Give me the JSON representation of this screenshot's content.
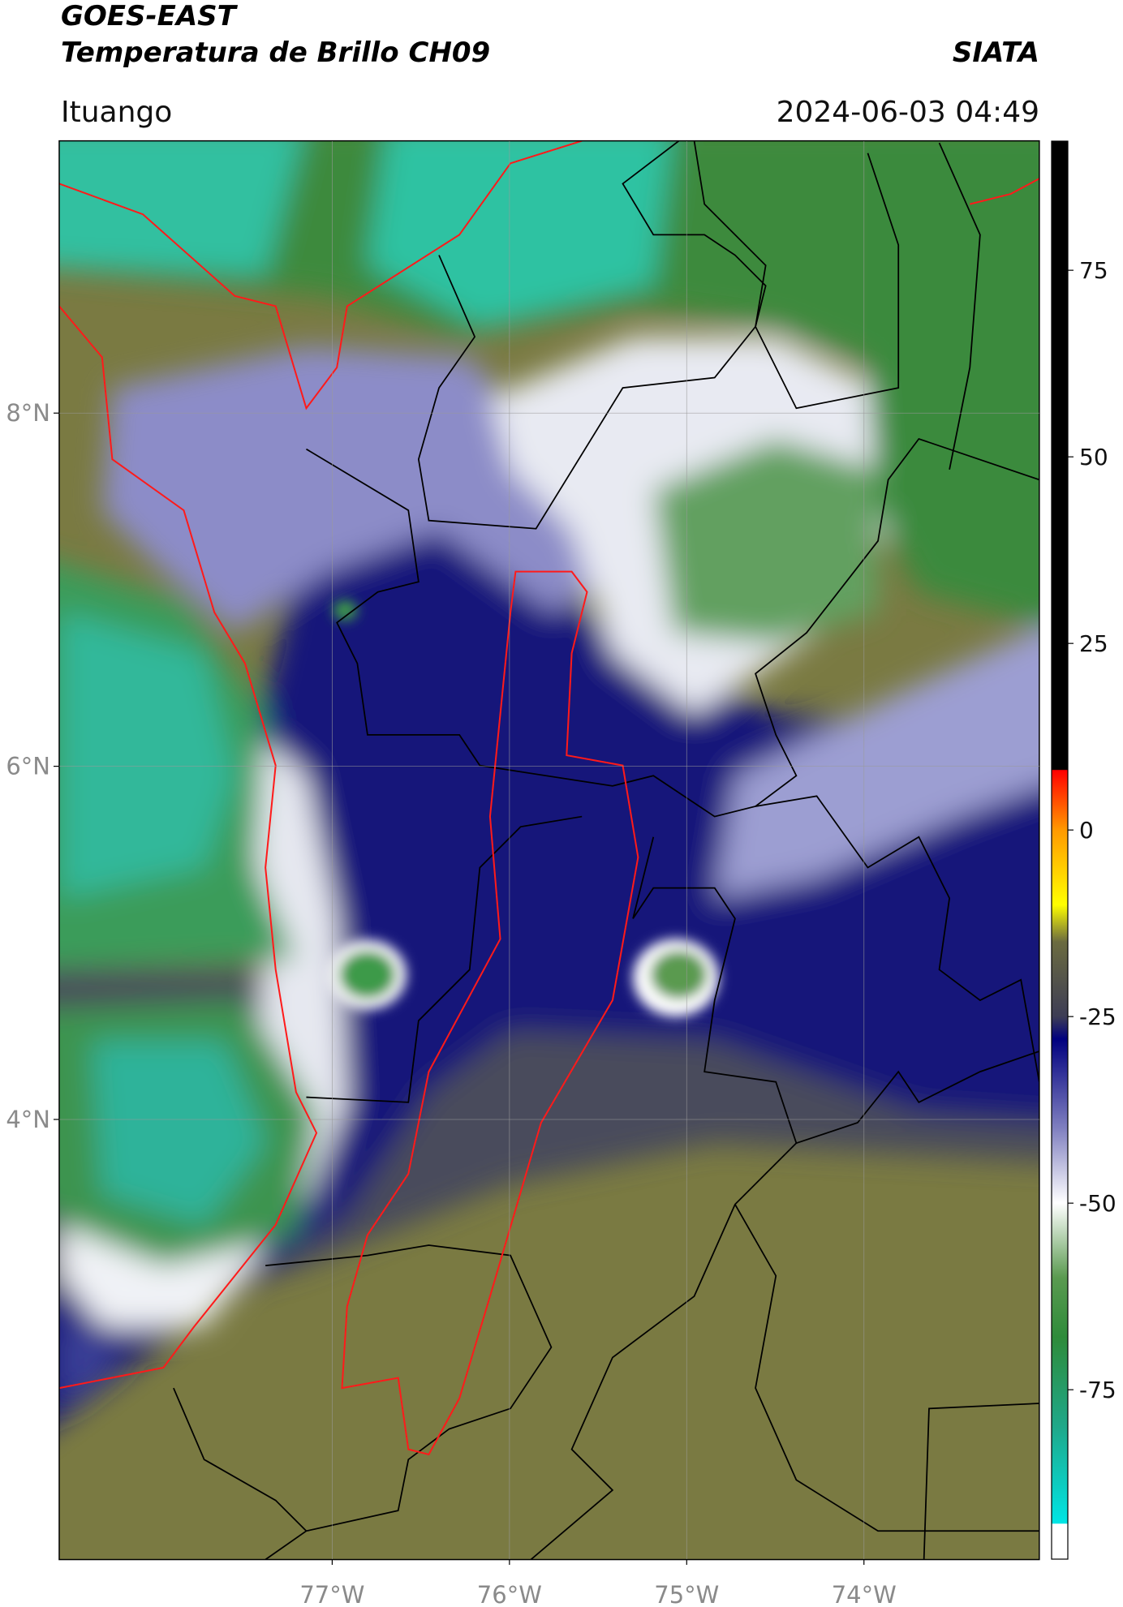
{
  "chart_data": {
    "type": "map",
    "title": "GOES-EAST",
    "subtitle": "Temperatura de Brillo CH09",
    "source": "SIATA",
    "region": "Ituango",
    "timestamp": "2024-06-03 04:49",
    "xlim": [
      -78.54,
      -73.01
    ],
    "ylim": [
      1.51,
      9.54
    ],
    "xticks": [
      {
        "value": -77,
        "label": "77°W"
      },
      {
        "value": -76,
        "label": "76°W"
      },
      {
        "value": -75,
        "label": "75°W"
      },
      {
        "value": -74,
        "label": "74°W"
      }
    ],
    "yticks": [
      {
        "value": 8,
        "label": "8°N"
      },
      {
        "value": 6,
        "label": "6°N"
      },
      {
        "value": 4,
        "label": "4°N"
      }
    ],
    "grid": true,
    "colorbar": {
      "clim": [
        -97.7,
        92.3
      ],
      "ticks": [
        75,
        50,
        25,
        0,
        -25,
        -50,
        -75
      ],
      "stops": [
        {
          "value": -97.7,
          "color": "#ffffff"
        },
        {
          "value": -93,
          "color": "#ffffff"
        },
        {
          "value": -92.9,
          "color": "#00e5e5"
        },
        {
          "value": -80,
          "color": "#1fa88a"
        },
        {
          "value": -68,
          "color": "#2e8b3a"
        },
        {
          "value": -60,
          "color": "#5a9a50"
        },
        {
          "value": -50,
          "color": "#ffffff"
        },
        {
          "value": -40,
          "color": "#8080c0"
        },
        {
          "value": -28,
          "color": "#00007f"
        },
        {
          "value": -25,
          "color": "#3d3d55"
        },
        {
          "value": -15,
          "color": "#6b6b40"
        },
        {
          "value": -10,
          "color": "#ffff00"
        },
        {
          "value": 0,
          "color": "#ff9900"
        },
        {
          "value": 8,
          "color": "#ff0000"
        },
        {
          "value": 8.1,
          "color": "#000000"
        },
        {
          "value": 92.3,
          "color": "#000000"
        }
      ]
    }
  }
}
